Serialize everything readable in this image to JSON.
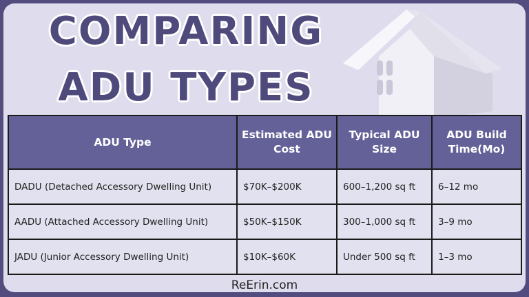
{
  "title": {
    "line1": "COMPARING",
    "line2": "ADU TYPES"
  },
  "colors": {
    "background": "#524d7e",
    "card": "#dfdded",
    "header": "#646198",
    "title_text": "#4f4a7c"
  },
  "image": "house-icon",
  "table": {
    "headers": [
      "ADU Type",
      "Estimated ADU Cost",
      "Typical ADU Size",
      "ADU Build Time(Mo)"
    ],
    "rows": [
      [
        "DADU (Detached Accessory Dwelling Unit)",
        "$70K–$200K",
        "600–1,200 sq ft",
        "6–12 mo"
      ],
      [
        "AADU (Attached Accessory Dwelling Unit)",
        "$50K–$150K",
        "300–1,000 sq ft",
        "3–9 mo"
      ],
      [
        "JADU (Junior Accessory Dwelling Unit)",
        "$10K–$60K",
        "Under 500 sq ft",
        "1–3 mo"
      ]
    ]
  },
  "footer": "ReErin.com"
}
